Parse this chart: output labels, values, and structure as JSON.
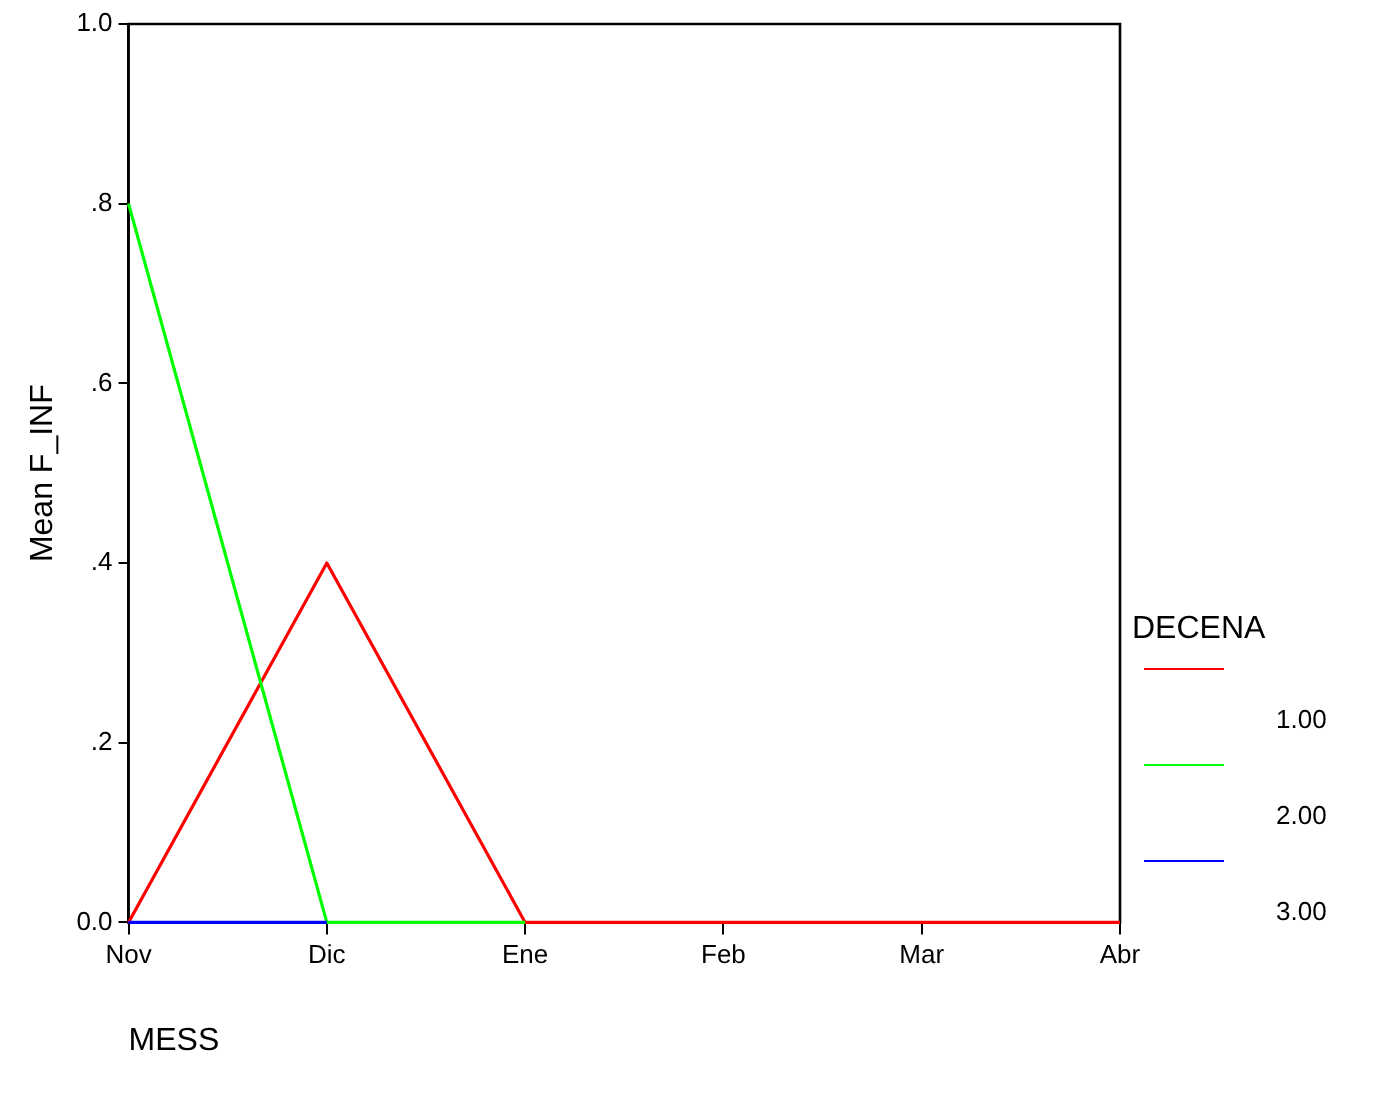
{
  "chart_data": {
    "type": "line",
    "xlabel": "MESS",
    "ylabel": "Mean F_INF",
    "legend_title": "DECENA",
    "categories": [
      "Nov",
      "Dic",
      "Ene",
      "Feb",
      "Mar",
      "Abr"
    ],
    "series": [
      {
        "name": "1.00",
        "color": "#ff0000",
        "values": [
          0,
          0.4,
          0,
          0,
          0,
          0
        ]
      },
      {
        "name": "2.00",
        "color": "#00ff00",
        "values": [
          0.8,
          0,
          0,
          null,
          null,
          null
        ]
      },
      {
        "name": "3.00",
        "color": "#0000ff",
        "values": [
          0,
          0,
          null,
          null,
          null,
          null
        ]
      }
    ],
    "ylim": [
      0,
      1
    ],
    "yticks": [
      {
        "value": 0,
        "label": "0.0"
      },
      {
        "value": 0.2,
        "label": ".2"
      },
      {
        "value": 0.4,
        "label": ".4"
      },
      {
        "value": 0.6,
        "label": ".6"
      },
      {
        "value": 0.8,
        "label": ".8"
      },
      {
        "value": 1,
        "label": "1.0"
      }
    ],
    "grid": false,
    "legend": "right",
    "marker": "none",
    "line_style": "solid"
  }
}
